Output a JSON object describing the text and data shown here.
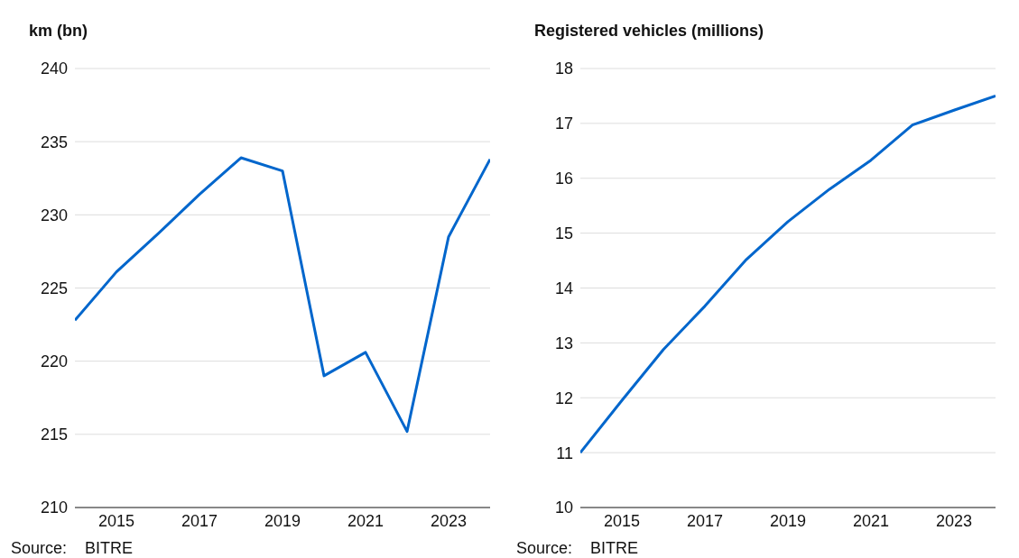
{
  "chart_data": [
    {
      "type": "line",
      "ylabel": "km (bn)",
      "x": [
        2014,
        2015,
        2016,
        2017,
        2018,
        2019,
        2020,
        2021,
        2022,
        2023,
        2024
      ],
      "series": [
        {
          "color": "#0066cc",
          "values": [
            222.8,
            226.1,
            228.7,
            231.4,
            233.9,
            233.0,
            219.0,
            220.6,
            215.2,
            228.5,
            233.8
          ]
        }
      ],
      "xlim": [
        2014,
        2024
      ],
      "xticks": [
        2015,
        2017,
        2019,
        2021,
        2023
      ],
      "ylim": [
        210,
        240
      ],
      "yticks": [
        210,
        215,
        220,
        225,
        230,
        235,
        240
      ],
      "grid": "y",
      "legend": false,
      "marker": "none",
      "line_style": "solid",
      "annotations": [
        "Source:    BITRE"
      ]
    },
    {
      "type": "line",
      "ylabel": "Registered vehicles (millions)",
      "x": [
        2014,
        2015,
        2016,
        2017,
        2018,
        2019,
        2020,
        2021,
        2022,
        2023,
        2024
      ],
      "series": [
        {
          "color": "#0066cc",
          "values": [
            11.0,
            11.95,
            12.88,
            13.67,
            14.52,
            15.21,
            15.8,
            16.33,
            16.97,
            17.24,
            17.5
          ]
        }
      ],
      "xlim": [
        2014,
        2024
      ],
      "xticks": [
        2015,
        2017,
        2019,
        2021,
        2023
      ],
      "ylim": [
        10,
        18
      ],
      "yticks": [
        10,
        11,
        12,
        13,
        14,
        15,
        16,
        17,
        18
      ],
      "grid": "y",
      "legend": false,
      "marker": "none",
      "line_style": "solid",
      "annotations": [
        "Source:    BITRE"
      ]
    }
  ]
}
